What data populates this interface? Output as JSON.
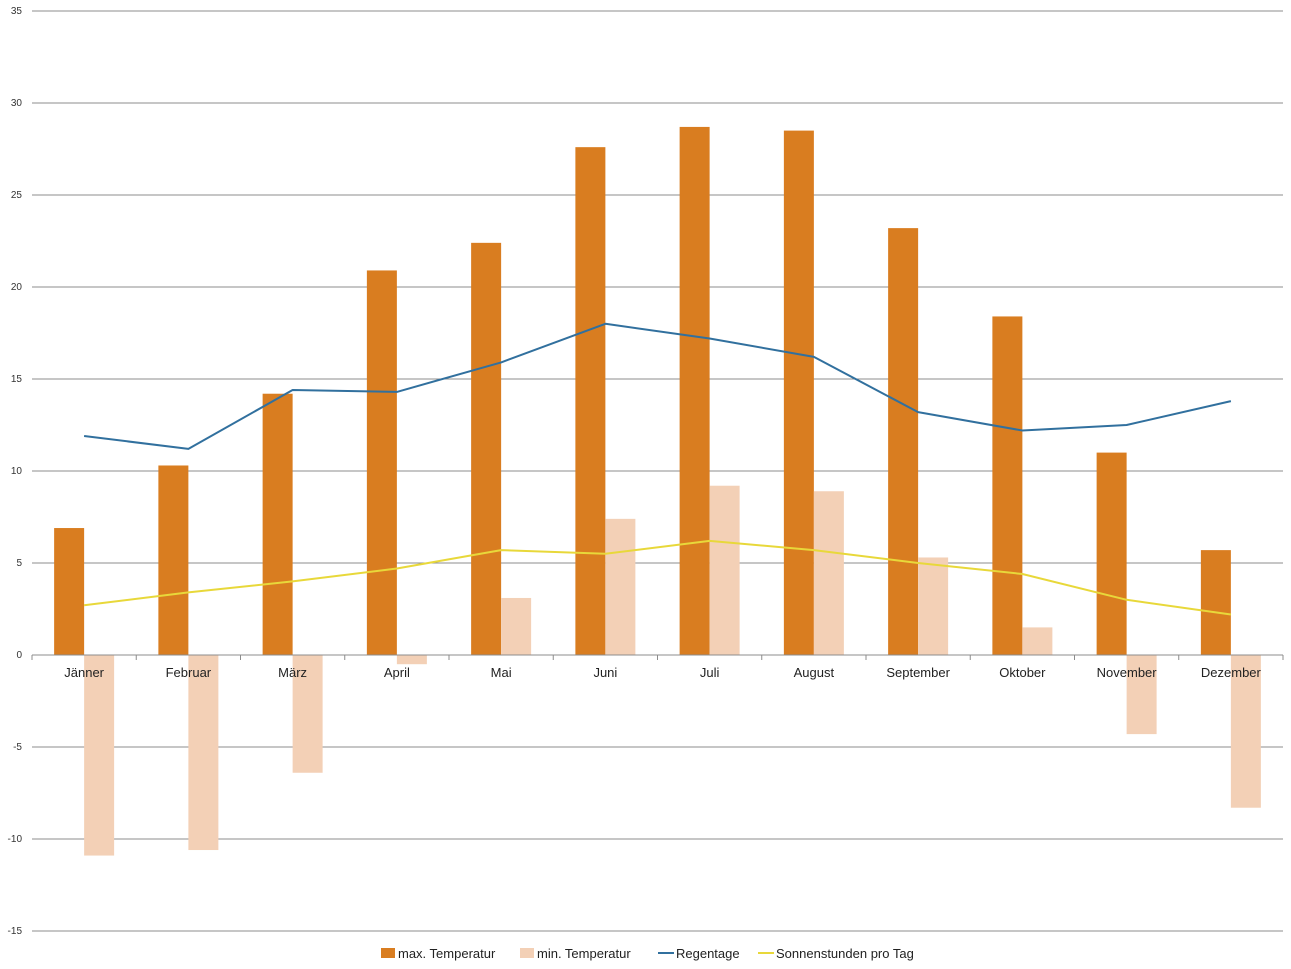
{
  "chart_data": {
    "type": "bar",
    "title": "",
    "xlabel": "",
    "ylabel": "",
    "ylim": [
      -15,
      35
    ],
    "yticks": [
      35,
      30,
      25,
      20,
      15,
      10,
      5,
      0,
      -5,
      -10,
      -15
    ],
    "grid": true,
    "legend_position": "bottom",
    "categories": [
      "Jänner",
      "Februar",
      "März",
      "April",
      "Mai",
      "Juni",
      "Juli",
      "August",
      "September",
      "Oktober",
      "November",
      "Dezember"
    ],
    "series": [
      {
        "name": "max. Temperatur",
        "type": "bar",
        "color": "#D97D20",
        "values": [
          6.9,
          10.3,
          14.2,
          20.9,
          22.4,
          27.6,
          28.7,
          28.5,
          23.2,
          18.4,
          11.0,
          5.7
        ]
      },
      {
        "name": "min. Temperatur",
        "type": "bar",
        "color": "#F3D0B6",
        "values": [
          -10.9,
          -10.6,
          -6.4,
          -0.5,
          3.1,
          7.4,
          9.2,
          8.9,
          5.3,
          1.5,
          -4.3,
          -8.3
        ]
      },
      {
        "name": "Regentage",
        "type": "line",
        "color": "#31709E",
        "values": [
          11.9,
          11.2,
          14.4,
          14.3,
          15.9,
          18.0,
          17.2,
          16.2,
          13.2,
          12.2,
          12.5,
          13.8
        ]
      },
      {
        "name": "Sonnenstunden pro Tag",
        "type": "line",
        "color": "#E8D83A",
        "values": [
          2.7,
          3.4,
          4.0,
          4.7,
          5.7,
          5.5,
          6.2,
          5.7,
          5.0,
          4.4,
          3.0,
          2.2
        ]
      }
    ]
  }
}
